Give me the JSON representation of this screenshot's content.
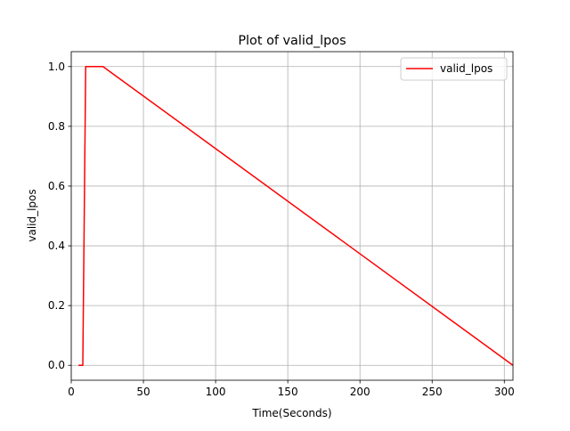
{
  "chart_data": {
    "type": "line",
    "title": "Plot of valid_lpos",
    "xlabel": "Time(Seconds)",
    "ylabel": "valid_lpos",
    "xlim": [
      0,
      306
    ],
    "ylim": [
      -0.05,
      1.05
    ],
    "x_ticks": [
      0,
      50,
      100,
      150,
      200,
      250,
      300
    ],
    "y_ticks": [
      0.0,
      0.2,
      0.4,
      0.6,
      0.8,
      1.0
    ],
    "x_tick_labels": [
      "0",
      "50",
      "100",
      "150",
      "200",
      "250",
      "300"
    ],
    "y_tick_labels": [
      "0.0",
      "0.2",
      "0.4",
      "0.6",
      "0.8",
      "1.0"
    ],
    "grid": true,
    "legend_position": "top-right",
    "series": [
      {
        "name": "valid_lpos",
        "color": "#ff0000",
        "x": [
          5,
          8,
          10,
          22,
          306
        ],
        "y": [
          0.0,
          0.0,
          1.0,
          1.0,
          0.0
        ]
      }
    ]
  }
}
